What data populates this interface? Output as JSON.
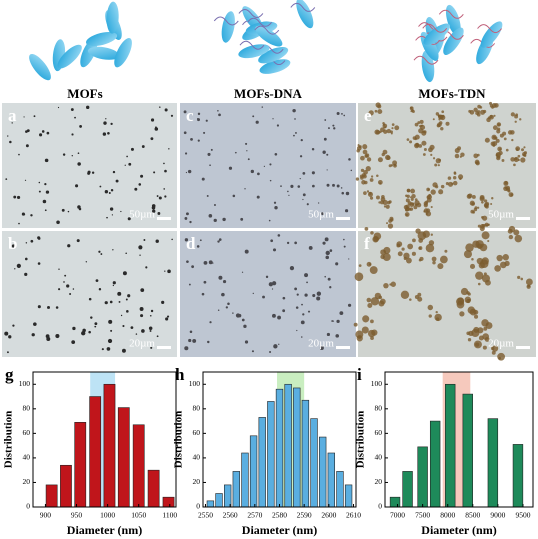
{
  "schematic": {
    "labels": [
      "MOFs",
      "MOFs-DNA",
      "MOFs-TDN"
    ]
  },
  "micrographs": {
    "panels": [
      {
        "letter": "a",
        "scale": "50µm"
      },
      {
        "letter": "b",
        "scale": "20µm"
      },
      {
        "letter": "c",
        "scale": "50µm"
      },
      {
        "letter": "d",
        "scale": "20µm"
      },
      {
        "letter": "e",
        "scale": "50µm"
      },
      {
        "letter": "f",
        "scale": "20µm"
      }
    ]
  },
  "chart_data": [
    {
      "type": "bar",
      "panel": "g",
      "xlabel": "Diameter (nm)",
      "ylabel": "Distribution",
      "color": "#c0151b",
      "x": [
        910,
        933,
        956,
        980,
        1003,
        1026,
        1050,
        1074,
        1098
      ],
      "values": [
        18,
        34,
        69,
        90,
        100,
        81,
        67,
        30,
        8
      ],
      "xlim": [
        880,
        1110
      ],
      "ylim": [
        0,
        110
      ],
      "xticks": [
        900,
        950,
        1000,
        1050,
        1100
      ],
      "yticks": [
        0,
        20,
        40,
        60,
        80,
        100
      ],
      "highlight": {
        "range": [
          972,
          1012
        ],
        "color": "#bde3f5"
      }
    },
    {
      "type": "bar",
      "panel": "h",
      "xlabel": "Diameter (nm)",
      "ylabel": "Distribution",
      "color": "#5aaee0",
      "x": [
        2552,
        2555.5,
        2559,
        2562.5,
        2566,
        2569.5,
        2573,
        2576.5,
        2580,
        2583.5,
        2587,
        2590.5,
        2594,
        2597.5,
        2601,
        2604.5,
        2608
      ],
      "values": [
        5,
        11,
        18,
        29,
        44,
        58,
        73,
        86,
        96,
        100,
        97,
        87,
        72,
        57,
        44,
        29,
        18
      ],
      "xlim": [
        2549,
        2611
      ],
      "ylim": [
        0,
        110
      ],
      "xticks": [
        2550,
        2560,
        2570,
        2580,
        2590,
        2600,
        2610
      ],
      "yticks": [
        0,
        20,
        40,
        60,
        80,
        100
      ],
      "highlight": {
        "range": [
          2579,
          2590
        ],
        "color": "#c9eec0"
      }
    },
    {
      "type": "bar",
      "panel": "i",
      "xlabel": "Diameter (nm)",
      "ylabel": "Distribution",
      "color": "#1e8a5a",
      "x": [
        6950,
        7200,
        7500,
        7750,
        8050,
        8400,
        8900,
        9400
      ],
      "values": [
        8,
        29,
        49,
        70,
        100,
        92,
        72,
        51
      ],
      "xlim": [
        6750,
        9700
      ],
      "ylim": [
        0,
        110
      ],
      "xticks": [
        7000,
        7500,
        8000,
        8500,
        9000,
        9500
      ],
      "yticks": [
        0,
        20,
        40,
        60,
        80,
        100
      ],
      "highlight": {
        "range": [
          7900,
          8450
        ],
        "color": "#f6c9bd"
      }
    }
  ]
}
